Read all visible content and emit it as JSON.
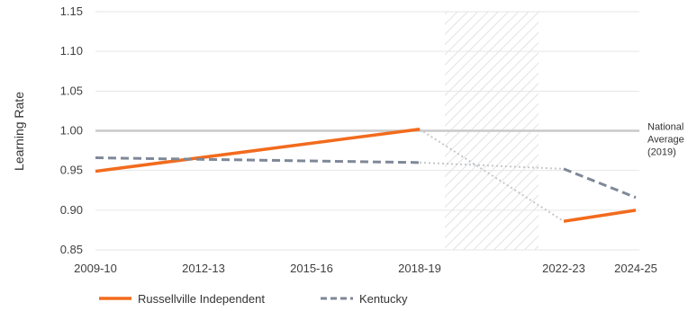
{
  "chart_data": {
    "type": "line",
    "ylabel": "Learning Rate",
    "ylim": [
      0.85,
      1.15
    ],
    "y_ticks": [
      "1.15",
      "1.10",
      "1.05",
      "1.00",
      "0.95",
      "0.90",
      "0.85"
    ],
    "x_ticks": [
      "2009-10",
      "2012-13",
      "2015-16",
      "2018-19",
      "2022-23",
      "2024-25"
    ],
    "grid": true,
    "reference_line": {
      "value": 1.0,
      "label_lines": [
        "National",
        "Average",
        "(2019)"
      ]
    },
    "shaded_region": {
      "from": "2019-20",
      "to": "2021-22",
      "pattern": "diagonal hatch"
    },
    "series": [
      {
        "name": "Russellville Independent",
        "color": "#f26b1d",
        "style": "solid",
        "segments": [
          [
            {
              "x": "2009-10",
              "y": 0.949
            },
            {
              "x": "2018-19",
              "y": 1.002
            }
          ],
          [
            {
              "x": "2022-23",
              "y": 0.886
            },
            {
              "x": "2024-25",
              "y": 0.9
            }
          ]
        ],
        "connector": [
          {
            "x": "2018-19",
            "y": 1.002
          },
          {
            "x": "2022-23",
            "y": 0.886
          }
        ]
      },
      {
        "name": "Kentucky",
        "color": "#7f8898",
        "style": "dashed",
        "segments": [
          [
            {
              "x": "2009-10",
              "y": 0.966
            },
            {
              "x": "2018-19",
              "y": 0.96
            }
          ],
          [
            {
              "x": "2022-23",
              "y": 0.952
            },
            {
              "x": "2024-25",
              "y": 0.916
            }
          ]
        ],
        "connector": [
          {
            "x": "2018-19",
            "y": 0.96
          },
          {
            "x": "2022-23",
            "y": 0.952
          }
        ]
      }
    ],
    "legend_position": "bottom-left"
  }
}
